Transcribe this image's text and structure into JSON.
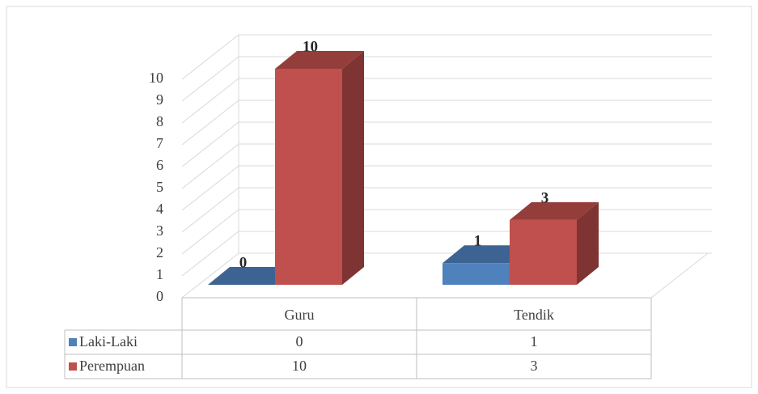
{
  "chart_data": {
    "type": "bar3d",
    "categories": [
      "Guru",
      "Tendik"
    ],
    "series": [
      {
        "name": "Laki-Laki",
        "color": "#4f81bd",
        "values": [
          0,
          1
        ]
      },
      {
        "name": "Perempuan",
        "color": "#c0504d",
        "values": [
          10,
          3
        ]
      }
    ],
    "ylim": [
      0,
      10
    ],
    "yticks": [
      0,
      1,
      2,
      3,
      4,
      5,
      6,
      7,
      8,
      9,
      10
    ],
    "grid": true
  }
}
